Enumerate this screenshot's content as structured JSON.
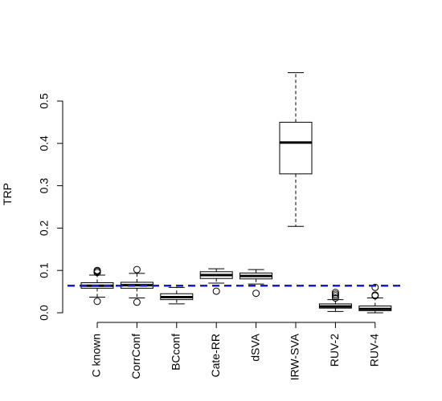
{
  "chart_data": {
    "type": "boxplot",
    "ylabel": "TRP",
    "ylim": [
      0,
      0.55
    ],
    "yticks": [
      0.0,
      0.1,
      0.2,
      0.3,
      0.4,
      0.5
    ],
    "ytick_labels": [
      "0.0",
      "0.1",
      "0.2",
      "0.3",
      "0.4",
      "0.5"
    ],
    "categories": [
      "C known",
      "CorrConf",
      "BCconf",
      "Cate-RR",
      "dSVA",
      "IRW-SVA",
      "RUV-2",
      "RUV-4"
    ],
    "boxes": [
      {
        "q1": 0.058,
        "median": 0.064,
        "q3": 0.071,
        "whisker_low": 0.037,
        "whisker_high": 0.089,
        "outliers": [
          0.027,
          0.095,
          0.098,
          0.1
        ]
      },
      {
        "q1": 0.058,
        "median": 0.065,
        "q3": 0.072,
        "whisker_low": 0.035,
        "whisker_high": 0.093,
        "outliers": [
          0.025,
          0.102
        ]
      },
      {
        "q1": 0.031,
        "median": 0.037,
        "q3": 0.045,
        "whisker_low": 0.021,
        "whisker_high": 0.06,
        "outliers": []
      },
      {
        "q1": 0.081,
        "median": 0.089,
        "q3": 0.097,
        "whisker_low": 0.07,
        "whisker_high": 0.104,
        "outliers": [
          0.051
        ]
      },
      {
        "q1": 0.08,
        "median": 0.087,
        "q3": 0.094,
        "whisker_low": 0.068,
        "whisker_high": 0.102,
        "outliers": [
          0.046
        ]
      },
      {
        "q1": 0.328,
        "median": 0.402,
        "q3": 0.45,
        "whisker_low": 0.204,
        "whisker_high": 0.567,
        "outliers": []
      },
      {
        "q1": 0.011,
        "median": 0.015,
        "q3": 0.021,
        "whisker_low": 0.003,
        "whisker_high": 0.031,
        "outliers": [
          0.035,
          0.04,
          0.044,
          0.048
        ]
      },
      {
        "q1": 0.005,
        "median": 0.009,
        "q3": 0.016,
        "whisker_low": 0.0,
        "whisker_high": 0.035,
        "outliers": [
          0.04,
          0.042,
          0.06
        ]
      }
    ],
    "reference_line": {
      "y": 0.064,
      "color": "#1a1acd",
      "style": "dashed"
    },
    "colors": {
      "box_fill": "#ffffff",
      "stroke": "#000000"
    },
    "grid": false,
    "legend": "none"
  }
}
